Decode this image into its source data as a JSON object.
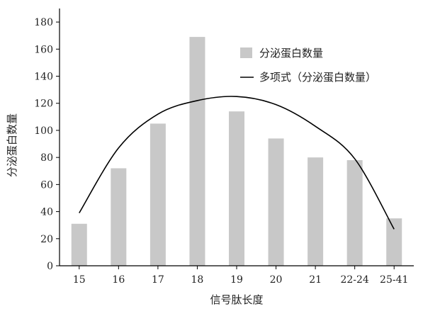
{
  "chart_data": {
    "type": "bar",
    "categories": [
      "15",
      "16",
      "17",
      "18",
      "19",
      "20",
      "21",
      "22-24",
      "25-41"
    ],
    "series": [
      {
        "name": "分泌蛋白数量",
        "type": "bar",
        "color": "#c8c8c8",
        "values": [
          31,
          72,
          105,
          169,
          114,
          94,
          80,
          78,
          35
        ]
      },
      {
        "name": "多项式（分泌蛋白数量）",
        "type": "line",
        "color": "#000000",
        "values": [
          39,
          87,
          112,
          122,
          125,
          119,
          103,
          79,
          27
        ]
      }
    ],
    "xlabel": "信号肽长度",
    "ylabel": "分泌蛋白数量",
    "ylim": [
      0,
      190
    ],
    "yticks": [
      0,
      20,
      40,
      60,
      80,
      100,
      120,
      140,
      160,
      180
    ],
    "grid": false,
    "legend": "top-right"
  }
}
